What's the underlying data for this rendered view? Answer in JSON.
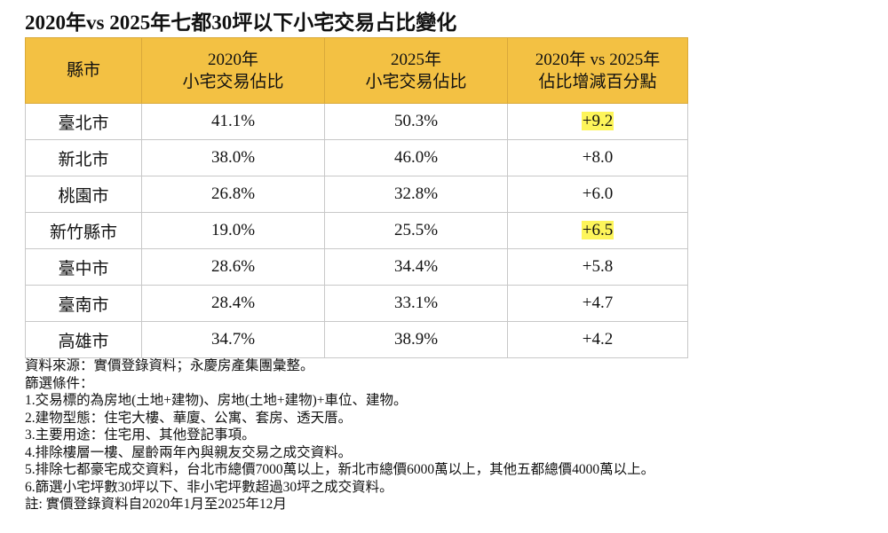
{
  "title": "2020年vs 2025年七都30坪以下小宅交易占比變化",
  "table": {
    "headers": [
      {
        "line1": "縣市",
        "line2": ""
      },
      {
        "line1": "2020年",
        "line2": "小宅交易佔比"
      },
      {
        "line1": "2025年",
        "line2": "小宅交易佔比"
      },
      {
        "line1": "2020年 vs 2025年",
        "line2": "佔比增減百分點"
      }
    ],
    "rows": [
      {
        "city": "臺北市",
        "y2020": "41.1%",
        "y2025": "50.3%",
        "change": "+9.2",
        "highlight": true
      },
      {
        "city": "新北市",
        "y2020": "38.0%",
        "y2025": "46.0%",
        "change": "+8.0",
        "highlight": false
      },
      {
        "city": "桃園市",
        "y2020": "26.8%",
        "y2025": "32.8%",
        "change": "+6.0",
        "highlight": false
      },
      {
        "city": "新竹縣市",
        "y2020": "19.0%",
        "y2025": "25.5%",
        "change": "+6.5",
        "highlight": true
      },
      {
        "city": "臺中市",
        "y2020": "28.6%",
        "y2025": "34.4%",
        "change": "+5.8",
        "highlight": false
      },
      {
        "city": "臺南市",
        "y2020": "28.4%",
        "y2025": "33.1%",
        "change": "+4.7",
        "highlight": false
      },
      {
        "city": "高雄市",
        "y2020": "34.7%",
        "y2025": "38.9%",
        "change": "+4.2",
        "highlight": false
      }
    ]
  },
  "colors": {
    "header_bg": "#f3c143",
    "highlight": "#fdf55a",
    "border": "#c8c8c8"
  },
  "notes": [
    "資料來源：實價登錄資料；永慶房產集團彙整。",
    "篩選條件：",
    "1.交易標的為房地(土地+建物)、房地(土地+建物)+車位、建物。",
    "2.建物型態：住宅大樓、華廈、公寓、套房、透天厝。",
    "3.主要用途：住宅用、其他登記事項。",
    "4.排除樓層一樓、屋齡兩年內與親友交易之成交資料。",
    "5.排除七都豪宅成交資料，台北市總價7000萬以上，新北市總價6000萬以上，其他五都總價4000萬以上。",
    "6.篩選小宅坪數30坪以下、非小宅坪數超過30坪之成交資料。",
    "註: 實價登錄資料自2020年1月至2025年12月"
  ]
}
